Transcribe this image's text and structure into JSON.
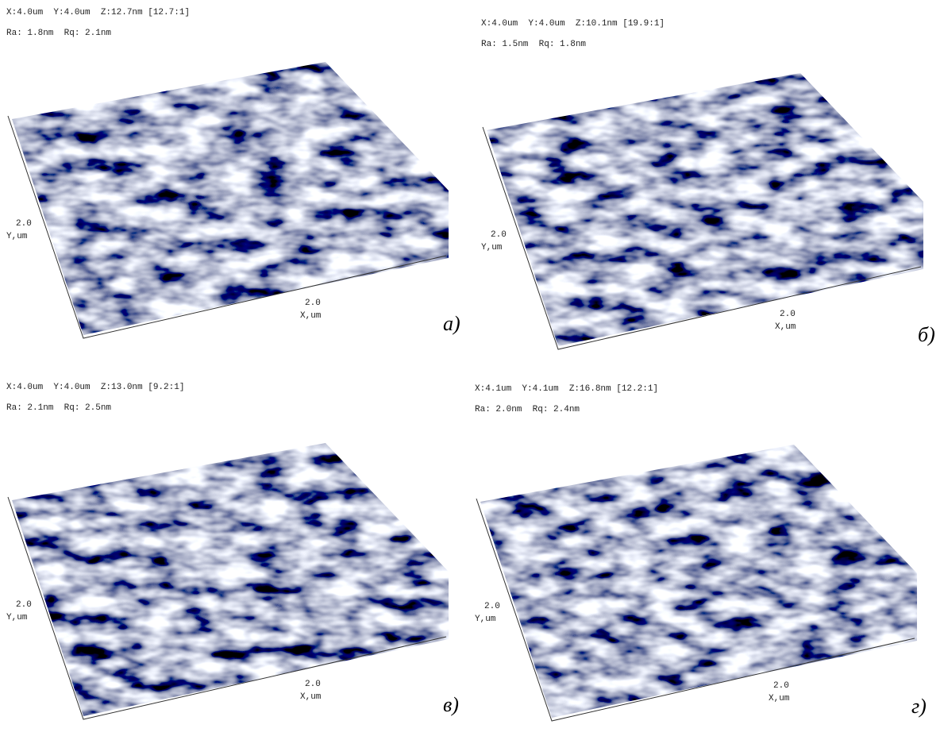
{
  "panels": [
    {
      "header": "X:4.0um  Y:4.0um  Z:12.7nm [12.7:1]",
      "roughness": "Ra: 1.8nm  Rq: 2.1nm",
      "y_tick": "2.0",
      "y_axis": "Y,um",
      "x_tick": "2.0",
      "x_axis": "X,um",
      "label": "а)"
    },
    {
      "header": "X:4.0um  Y:4.0um  Z:10.1nm [19.9:1]",
      "roughness": "Ra: 1.5nm  Rq: 1.8nm",
      "y_tick": "2.0",
      "y_axis": "Y,um",
      "x_tick": "2.0",
      "x_axis": "X,um",
      "label": "б)"
    },
    {
      "header": "X:4.0um  Y:4.0um  Z:13.0nm [9.2:1]",
      "roughness": "Ra: 2.1nm  Rq: 2.5nm",
      "y_tick": "2.0",
      "y_axis": "Y,um",
      "x_tick": "2.0",
      "x_axis": "X,um",
      "label": "в)"
    },
    {
      "header": "X:4.1um  Y:4.1um  Z:16.8nm [12.2:1]",
      "roughness": "Ra: 2.0nm  Rq: 2.4nm",
      "y_tick": "2.0",
      "y_axis": "Y,um",
      "x_tick": "2.0",
      "x_axis": "X,um",
      "label": "г)"
    }
  ]
}
